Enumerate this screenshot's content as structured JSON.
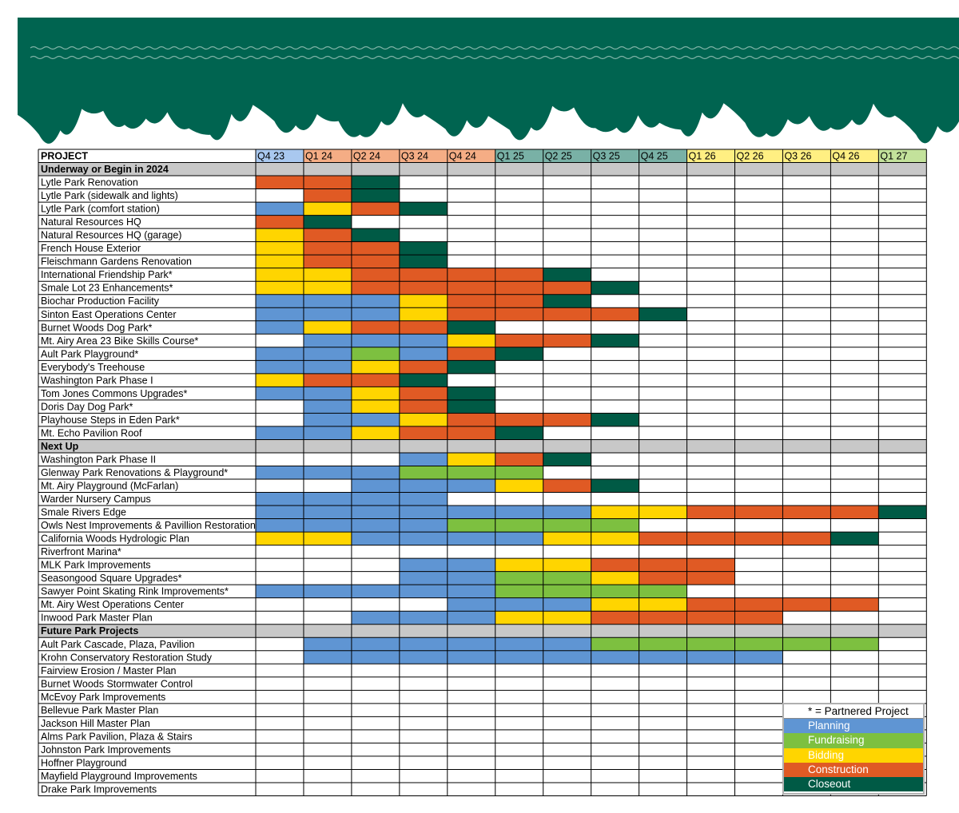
{
  "colors": {
    "banner": "#006450",
    "planning": "#5f95d3",
    "fundraising": "#7dc040",
    "bidding": "#ffd500",
    "construction": "#e05a24",
    "closeout": "#005a45",
    "section_bg": "#c8c8c8",
    "header_q4_23": "#a9c8ef",
    "header_2024": "#f5ad85",
    "header_2025": "#79b1a6",
    "header_2026": "#ffef82",
    "header_q1_27": "#c3e29b"
  },
  "header": {
    "project_label": "PROJECT",
    "quarters": [
      "Q4 23",
      "Q1 24",
      "Q2 24",
      "Q3 24",
      "Q4 24",
      "Q1 25",
      "Q2 25",
      "Q3 25",
      "Q4 25",
      "Q1 26",
      "Q2 26",
      "Q3 26",
      "Q4 26",
      "Q1 27"
    ]
  },
  "chart_data": {
    "type": "table",
    "status_codes": {
      "P": "Planning",
      "F": "Fundraising",
      "B": "Bidding",
      "C": "Construction",
      "X": "Closeout"
    },
    "sections": [
      {
        "title": "Underway or Begin in 2024",
        "projects": [
          {
            "name": "Lytle Park Renovation",
            "phases": "CCX..........."
          },
          {
            "name": "Lytle Park (sidewalk and lights)",
            "phases": ".CX..........."
          },
          {
            "name": "Lytle Park (comfort station)",
            "phases": "PBCX.........."
          },
          {
            "name": "Natural Resources HQ",
            "phases": "CX............"
          },
          {
            "name": "Natural Resources HQ (garage)",
            "phases": "BCX..........."
          },
          {
            "name": "French House Exterior",
            "phases": "BCCX.........."
          },
          {
            "name": "Fleischmann Gardens Renovation",
            "phases": "BCCX.........."
          },
          {
            "name": "International Friendship Park*",
            "phases": "BBCCCCX......."
          },
          {
            "name": "Smale Lot 23 Enhancements*",
            "phases": "BBCCCCCX......"
          },
          {
            "name": "Biochar Production Facility",
            "phases": "PPPBCCX......."
          },
          {
            "name": "Sinton East Operations Center",
            "phases": "PPPBCCCCX....."
          },
          {
            "name": "Burnet Woods Dog Park*",
            "phases": "PBCCX........."
          },
          {
            "name": "Mt. Airy Area 23 Bike Skills Course*",
            "phases": ".PPPBCCX......"
          },
          {
            "name": "Ault Park Playground*",
            "phases": "PPFPCX........"
          },
          {
            "name": "Everybody's Treehouse",
            "phases": "PPBCX........."
          },
          {
            "name": "Washington Park Phase I",
            "phases": "BCCX.........."
          },
          {
            "name": "Tom Jones Commons Upgrades*",
            "phases": "PPBCX........."
          },
          {
            "name": "Doris Day Dog Park*",
            "phases": ".PBCX........."
          },
          {
            "name": "Playhouse Steps in Eden Park*",
            "phases": ".PPBCCCX......"
          },
          {
            "name": "Mt. Echo Pavilion Roof",
            "phases": "PPBCCX........"
          }
        ]
      },
      {
        "title": "Next Up",
        "projects": [
          {
            "name": "Washington Park Phase II",
            "phases": "...PBCX......."
          },
          {
            "name": "Glenway Park Renovations & Playground*",
            "phases": "PPPFFF........"
          },
          {
            "name": "Mt. Airy Playground (McFarlan)",
            "phases": "..PPPBCX......"
          },
          {
            "name": "Warder Nursery Campus",
            "phases": "PPPP.........."
          },
          {
            "name": "Smale Rivers Edge",
            "phases": "PPPPPPPBBCCCCX"
          },
          {
            "name": "Owls Nest Improvements & Pavillion Restoration*",
            "phases": "PPPPFFFF......"
          },
          {
            "name": "California Woods Hydrologic Plan",
            "phases": "BBPPPPBBCCCCX."
          },
          {
            "name": "Riverfront Marina*",
            "phases": ".............."
          },
          {
            "name": "MLK Park Improvements",
            "phases": "...PPBBCCC...."
          },
          {
            "name": "Seasongood Square Upgrades*",
            "phases": "...PPFFBCC...."
          },
          {
            "name": "Sawyer Point Skating Rink Improvements*",
            "phases": "PPPPPFFFF....."
          },
          {
            "name": "Mt. Airy West Operations Center",
            "phases": "....PPPBBCCCC."
          },
          {
            "name": "Inwood Park Master Plan",
            "phases": "..PPPBBCCCC..."
          }
        ]
      },
      {
        "title": "Future Park Projects",
        "projects": [
          {
            "name": "Ault Park Cascade, Plaza, Pavilion",
            "phases": ".PPPPPPFFFFFF."
          },
          {
            "name": "Krohn Conservatory Restoration Study",
            "phases": ".PPPPPPPPPP..."
          },
          {
            "name": "Fairview Erosion / Master Plan",
            "phases": ".............."
          },
          {
            "name": "Burnet Woods Stormwater Control",
            "phases": ".............."
          },
          {
            "name": "McEvoy Park Improvements",
            "phases": ".............."
          },
          {
            "name": "Bellevue Park Master Plan",
            "phases": ".............."
          },
          {
            "name": "Jackson Hill Master Plan",
            "phases": ".............."
          },
          {
            "name": "Alms Park Pavilion, Plaza & Stairs",
            "phases": ".............."
          },
          {
            "name": "Johnston Park Improvements",
            "phases": ".............."
          },
          {
            "name": "Hoffner Playground",
            "phases": ".............."
          },
          {
            "name": "Mayfield Playground Improvements",
            "phases": ".............."
          },
          {
            "name": "Drake Park Improvements",
            "phases": ".............."
          }
        ]
      }
    ]
  },
  "legend": {
    "note": "* = Partnered Project",
    "items": [
      {
        "label": "Planning",
        "code": "P"
      },
      {
        "label": "Fundraising",
        "code": "F"
      },
      {
        "label": "Bidding",
        "code": "B"
      },
      {
        "label": "Construction",
        "code": "C"
      },
      {
        "label": "Closeout",
        "code": "X"
      }
    ]
  }
}
